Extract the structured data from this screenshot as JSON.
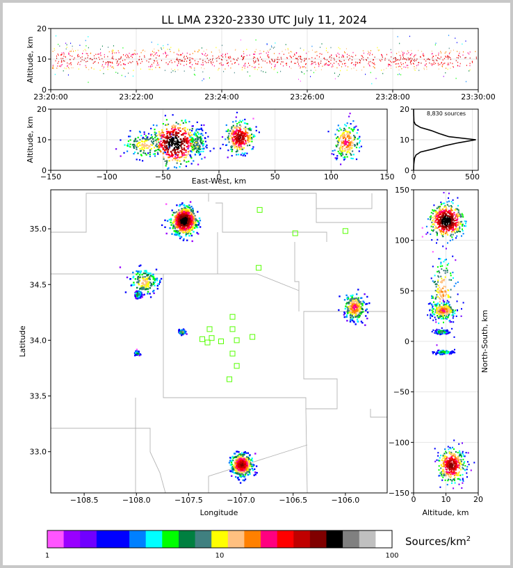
{
  "title": "LL LMA 2320-2330 UTC July 11, 2024",
  "colorbar": {
    "label": "Sources/km",
    "label_sup": "2",
    "ticks": [
      "1",
      "10",
      "100"
    ],
    "colors": [
      "#ff55ff",
      "#9900ff",
      "#7000ff",
      "#0000ff",
      "#0000ff",
      "#0080ff",
      "#00ffff",
      "#00ff00",
      "#008040",
      "#408080",
      "#ffff00",
      "#ffc080",
      "#ff8000",
      "#ff0080",
      "#ff0000",
      "#c00000",
      "#800000",
      "#000000",
      "#808080",
      "#c0c0c0",
      "#ffffff"
    ]
  },
  "chart_data": [
    {
      "type": "scatter",
      "name": "time-height",
      "ylabel": "Altitude, km",
      "xlabel": "",
      "xlim": [
        "23:20:00",
        "23:30:00"
      ],
      "ylim": [
        0,
        20
      ],
      "x_ticks": [
        "23:20:00",
        "23:22:00",
        "23:24:00",
        "23:26:00",
        "23:28:00",
        "23:30:00"
      ],
      "y_ticks": [
        "0",
        "10",
        "20"
      ],
      "grid": true,
      "note_values": {
        "typical_altitude_km": [
          5,
          15
        ],
        "peak_altitude_km": 10
      }
    },
    {
      "type": "heatmap",
      "name": "east-west-vs-altitude",
      "xlabel": "East-West, km",
      "ylabel": "Altitude, km",
      "xlim": [
        -150,
        150
      ],
      "ylim": [
        0,
        20
      ],
      "x_ticks": [
        "−150",
        "−100",
        "−50",
        "0",
        "50",
        "100",
        "150"
      ],
      "y_ticks": [
        "0",
        "10",
        "20"
      ],
      "grid": true,
      "clusters": [
        {
          "x_km": -66,
          "z_km": 8.5,
          "sx": 10,
          "sz": 2.2,
          "peak": 12
        },
        {
          "x_km": -40,
          "z_km": 9.2,
          "sx": 10,
          "sz": 3.5,
          "peak": 60
        },
        {
          "x_km": -20,
          "z_km": 9,
          "sx": 4,
          "sz": 2.5,
          "peak": 8
        },
        {
          "x_km": 18,
          "z_km": 11,
          "sx": 6,
          "sz": 2.5,
          "peak": 40
        },
        {
          "x_km": 113,
          "z_km": 9.5,
          "sx": 6,
          "sz": 3,
          "peak": 20
        }
      ]
    },
    {
      "type": "line",
      "name": "altitude-histogram",
      "annotation": "8,830 sources",
      "xlim": [
        0,
        550
      ],
      "ylim": [
        0,
        20
      ],
      "x_ticks": [
        "0",
        "500"
      ],
      "y_ticks": [
        "0",
        "10",
        "20"
      ],
      "profile_altitude_km": [
        0,
        2,
        4,
        5,
        6,
        7,
        8,
        9,
        10,
        11,
        12,
        13,
        14,
        15,
        16,
        18,
        20
      ],
      "profile_count": [
        0,
        2,
        8,
        20,
        60,
        170,
        260,
        380,
        530,
        300,
        220,
        150,
        60,
        15,
        3,
        1,
        0
      ],
      "grid": true
    },
    {
      "type": "heatmap",
      "name": "plan-view",
      "xlabel": "Longitude",
      "ylabel": "Latitude",
      "xlim": [
        -108.82,
        -105.6
      ],
      "ylim": [
        32.63,
        35.35
      ],
      "x_ticks": [
        "−108.5",
        "−108.0",
        "−107.5",
        "−107.0",
        "−106.5",
        "−106.0"
      ],
      "y_ticks": [
        "33.0",
        "33.5",
        "34.0",
        "34.5",
        "35.0"
      ],
      "clusters": [
        {
          "lon": -107.55,
          "lat": 35.08,
          "slon": 0.06,
          "slat": 0.06,
          "peak": 60
        },
        {
          "lon": -107.0,
          "lat": 32.89,
          "slon": 0.05,
          "slat": 0.05,
          "peak": 40
        },
        {
          "lon": -107.93,
          "lat": 34.53,
          "slon": 0.07,
          "slat": 0.06,
          "peak": 12
        },
        {
          "lon": -105.92,
          "lat": 34.3,
          "slon": 0.05,
          "slat": 0.06,
          "peak": 20
        },
        {
          "lon": -107.99,
          "lat": 34.42,
          "slon": 0.015,
          "slat": 0.015,
          "peak": 8
        },
        {
          "lon": -107.57,
          "lat": 34.08,
          "slon": 0.015,
          "slat": 0.01,
          "peak": 10
        },
        {
          "lon": -108.0,
          "lat": 33.89,
          "slon": 0.01,
          "slat": 0.01,
          "peak": 5
        }
      ],
      "stations": [
        {
          "lon": -106.82,
          "lat": 35.17
        },
        {
          "lon": -106.48,
          "lat": 34.96
        },
        {
          "lon": -106.0,
          "lat": 34.98
        },
        {
          "lon": -106.83,
          "lat": 34.65
        },
        {
          "lon": -107.08,
          "lat": 34.21
        },
        {
          "lon": -107.3,
          "lat": 34.1
        },
        {
          "lon": -107.08,
          "lat": 34.1
        },
        {
          "lon": -107.37,
          "lat": 34.01
        },
        {
          "lon": -107.32,
          "lat": 33.98
        },
        {
          "lon": -107.28,
          "lat": 34.02
        },
        {
          "lon": -107.19,
          "lat": 33.99
        },
        {
          "lon": -107.04,
          "lat": 34.0
        },
        {
          "lon": -106.89,
          "lat": 34.03
        },
        {
          "lon": -107.08,
          "lat": 33.88
        },
        {
          "lon": -107.04,
          "lat": 33.77
        },
        {
          "lon": -107.11,
          "lat": 33.65
        }
      ]
    },
    {
      "type": "heatmap",
      "name": "north-south-vs-altitude",
      "xlabel": "Altitude, km",
      "ylabel": "North-South, km",
      "xlim": [
        0,
        20
      ],
      "ylim": [
        -150,
        150
      ],
      "x_ticks": [
        "0",
        "10",
        "20"
      ],
      "y_ticks": [
        "−150",
        "−100",
        "−50",
        "0",
        "50",
        "100",
        "150"
      ],
      "grid": true,
      "clusters": [
        {
          "z_km": 10,
          "y_km": 120,
          "sz": 2.5,
          "sy": 8,
          "peak": 60
        },
        {
          "z_km": 9,
          "y_km": 50,
          "sz": 2,
          "sy": 18,
          "peak": 15
        },
        {
          "z_km": 9,
          "y_km": 31,
          "sz": 2,
          "sy": 4,
          "peak": 20
        },
        {
          "z_km": 8.5,
          "y_km": 10,
          "sz": 1,
          "sy": 1,
          "peak": 8
        },
        {
          "z_km": 9,
          "y_km": -10,
          "sz": 1.5,
          "sy": 1,
          "peak": 5
        },
        {
          "z_km": 11.5,
          "y_km": -122,
          "sz": 2,
          "sy": 8,
          "peak": 40
        }
      ]
    }
  ]
}
